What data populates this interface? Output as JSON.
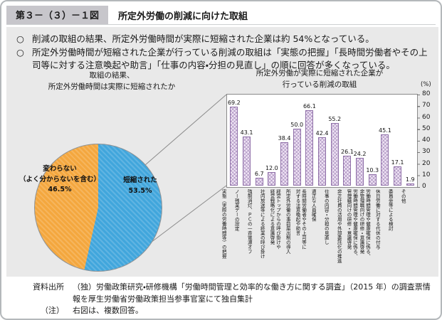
{
  "header": {
    "figure_number": "第３－（３）－１図",
    "title": "所定外労働の削減に向けた取組"
  },
  "bullets": [
    {
      "marker": "○",
      "text": "削減の取組の結果、所定外労働時間が実際に短縮された企業は約 54%となっている。"
    },
    {
      "marker": "○",
      "text": "所定外労働時間が短縮された企業が行っている削減の取組は「実態の把握」「長時間労働者やその上司等に対する注意喚起や助言」「仕事の内容・分担の見直し」の順に回答が多くなっている。"
    }
  ],
  "chart_data": [
    {
      "type": "pie",
      "title": "取組の結果、\n所定外労働時間は実際に短縮されたか",
      "start_angle_deg": 0,
      "direction": "clockwise",
      "slices": [
        {
          "label": "短縮された",
          "value": 53.5,
          "pct_label": "53.5%",
          "color": "#41a6dc"
        },
        {
          "label": "変わらない\n（よく分からないを含む）",
          "value": 46.5,
          "pct_label": "46.5%",
          "color": "#f4a73e"
        }
      ]
    },
    {
      "type": "bar",
      "title": "所定外労働が実際に短縮された企業が\n行っている削減の取組",
      "unit": "(%)",
      "ylim": [
        0,
        80
      ],
      "yticks": [
        "80",
        "70",
        "60",
        "50",
        "40",
        "30",
        "20",
        "10",
        "0"
      ],
      "legend": "none",
      "grid": "off",
      "bar_color": "#efe4f5",
      "bar_border": "#8f6fa8",
      "categories": [
        "実態（実際の労働時間等）の把握",
        "ノー残業デーの設定",
        "強制消灯、ＰＣの一斉電源オフ",
        "社内放送等による終業の呼び掛け",
        "経営トップからの呼び掛けや\n経営戦略化による意識啓発",
        "所定外労働の事前届出制の導入",
        "長時間労働者やその上司等に\n対する注意喚起や助言",
        "適正な人員確保",
        "仕事の内容・分担の見直し",
        "非正社員の活用や外部委託化の推進",
        "労働時間管理や健康確保に係る、\n管理職向けの研修・意識啓発",
        "労働時間管理や健康確保に係る、\n非管理職向けの研修・意識啓発",
        "休日労働に対する代休の付与",
        "委員会等による検討",
        "その他"
      ],
      "values": [
        69.2,
        43.1,
        6.7,
        12.0,
        38.4,
        50.0,
        66.1,
        42.4,
        55.2,
        26.1,
        24.2,
        10.3,
        45.1,
        17.1,
        1.9
      ],
      "value_labels": [
        "69.2",
        "43.1",
        "6.7",
        "12.0",
        "38.4",
        "50.0",
        "66.1",
        "42.4",
        "55.2",
        "26.1",
        "24.2",
        "10.3",
        "45.1",
        "17.1",
        "1.9"
      ]
    }
  ],
  "footer": {
    "source_label": "資料出所",
    "source": "（独）労働政策研究・研修機構「労働時間管理と効率的な働き方に関する調査」（2015 年）の調査票情報を厚生労働省労働政策担当参事官室にて独自集計",
    "note_label": "（注）",
    "note": "右図は、複数回答。"
  }
}
